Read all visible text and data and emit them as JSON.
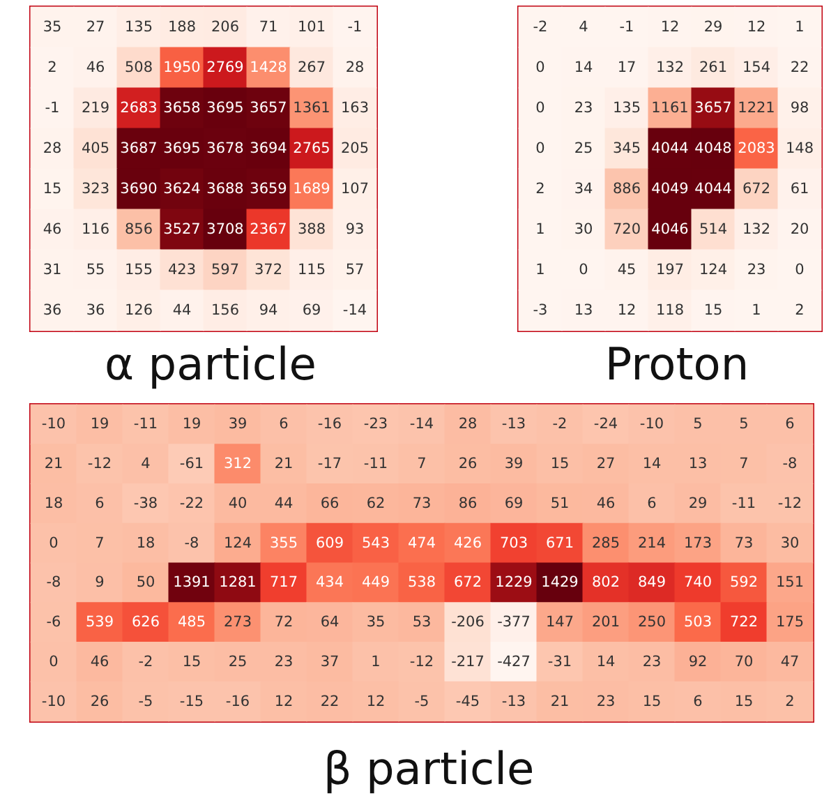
{
  "chart_data": [
    {
      "type": "heatmap",
      "title": "α particle",
      "categories": [
        null,
        null,
        null,
        null,
        null,
        null,
        null,
        null
      ],
      "y_categories": [
        null,
        null,
        null,
        null,
        null,
        null,
        null,
        null
      ],
      "data_labels": true,
      "cells": [
        [
          35,
          27,
          135,
          188,
          206,
          71,
          101,
          -1
        ],
        [
          2,
          46,
          508,
          1950,
          2769,
          1428,
          267,
          28
        ],
        [
          -1,
          219,
          2683,
          3658,
          3695,
          3657,
          1361,
          163
        ],
        [
          28,
          405,
          3687,
          3695,
          3678,
          3694,
          2765,
          205
        ],
        [
          15,
          323,
          3690,
          3624,
          3688,
          3659,
          1689,
          107
        ],
        [
          46,
          116,
          856,
          3527,
          3708,
          2367,
          388,
          93
        ],
        [
          31,
          55,
          155,
          423,
          597,
          372,
          115,
          57
        ],
        [
          36,
          36,
          126,
          44,
          156,
          94,
          69,
          -14
        ]
      ]
    },
    {
      "type": "heatmap",
      "title": "Proton",
      "categories": [
        null,
        null,
        null,
        null,
        null,
        null,
        null
      ],
      "y_categories": [
        null,
        null,
        null,
        null,
        null,
        null,
        null,
        null
      ],
      "data_labels": true,
      "cells": [
        [
          -2,
          4,
          -1,
          12,
          29,
          12,
          1
        ],
        [
          0,
          14,
          17,
          132,
          261,
          154,
          22
        ],
        [
          0,
          23,
          135,
          1161,
          3657,
          1221,
          98
        ],
        [
          0,
          25,
          345,
          4044,
          4048,
          2083,
          148
        ],
        [
          2,
          34,
          886,
          4049,
          4044,
          672,
          61
        ],
        [
          1,
          30,
          720,
          4046,
          514,
          132,
          20
        ],
        [
          1,
          0,
          45,
          197,
          124,
          23,
          0
        ],
        [
          -3,
          13,
          12,
          118,
          15,
          1,
          2
        ]
      ]
    },
    {
      "type": "heatmap",
      "title": "β particle",
      "categories": [
        null,
        null,
        null,
        null,
        null,
        null,
        null,
        null,
        null,
        null,
        null,
        null,
        null,
        null,
        null,
        null,
        null
      ],
      "y_categories": [
        null,
        null,
        null,
        null,
        null,
        null,
        null,
        null
      ],
      "data_labels": true,
      "cells": [
        [
          -10,
          19,
          -11,
          19,
          39,
          6,
          -16,
          -23,
          -14,
          28,
          -13,
          -2,
          -24,
          -10,
          5,
          5,
          6
        ],
        [
          21,
          -12,
          4,
          -61,
          312,
          21,
          -17,
          -11,
          7,
          26,
          39,
          15,
          27,
          14,
          13,
          7,
          -8
        ],
        [
          18,
          6,
          -38,
          -22,
          40,
          44,
          66,
          62,
          73,
          86,
          69,
          51,
          46,
          6,
          29,
          -11,
          -12
        ],
        [
          0,
          7,
          18,
          -8,
          124,
          355,
          609,
          543,
          474,
          426,
          703,
          671,
          285,
          214,
          173,
          73,
          30
        ],
        [
          -8,
          9,
          50,
          1391,
          1281,
          717,
          434,
          449,
          538,
          672,
          1229,
          1429,
          802,
          849,
          740,
          592,
          151
        ],
        [
          -6,
          539,
          626,
          485,
          273,
          72,
          64,
          35,
          53,
          -206,
          -377,
          147,
          201,
          250,
          503,
          722,
          175
        ],
        [
          0,
          46,
          -2,
          15,
          25,
          23,
          37,
          1,
          -12,
          -217,
          -427,
          -31,
          14,
          23,
          92,
          70,
          47
        ],
        [
          -10,
          26,
          -5,
          -15,
          -16,
          12,
          22,
          12,
          -5,
          -45,
          -13,
          21,
          23,
          15,
          6,
          15,
          2
        ]
      ]
    }
  ]
}
